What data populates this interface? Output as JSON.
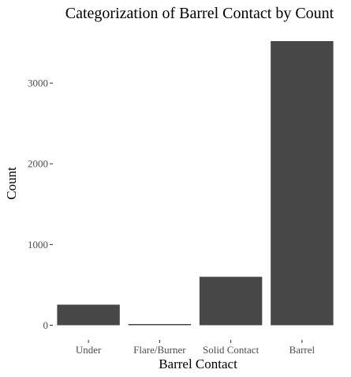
{
  "chart_data": {
    "type": "bar",
    "title": "Categorization of Barrel Contact by Count",
    "xlabel": "Barrel Contact",
    "ylabel": "Count",
    "categories": [
      "Under",
      "Flare/Burner",
      "Solid Contact",
      "Barrel"
    ],
    "values": [
      255,
      15,
      600,
      3520
    ],
    "ylim": [
      0,
      3520
    ],
    "yticks": [
      0,
      1000,
      2000,
      3000
    ],
    "ytick_labels": [
      "0",
      "1000",
      "2000",
      "3000"
    ],
    "grid": false,
    "legend": "none",
    "bar_color": "#474747"
  }
}
